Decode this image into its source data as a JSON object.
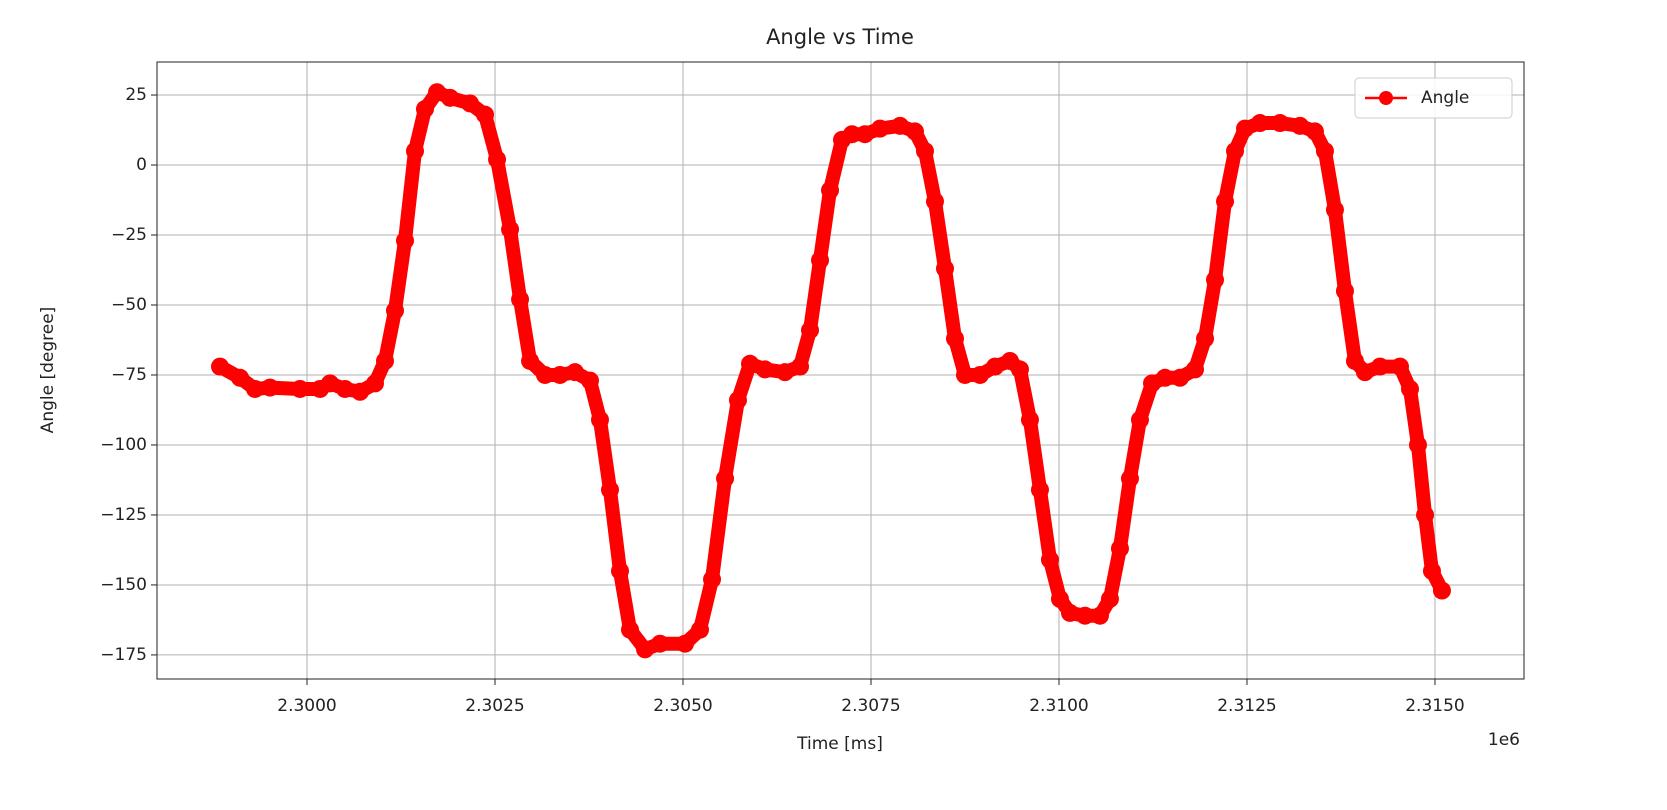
{
  "chart_data": {
    "type": "line",
    "title": "Angle vs Time",
    "xlabel": "Time [ms]",
    "ylabel": "Angle [degree]",
    "x_offset_label": "1e6",
    "x": [
      2298843,
      2299109,
      2299308,
      2299508,
      2299907,
      2300173,
      2300306,
      2300505,
      2300705,
      2300904,
      2301037,
      2301170,
      2301303,
      2301436,
      2301569,
      2301729,
      2301902,
      2302168,
      2302367,
      2302527,
      2302700,
      2302833,
      2302966,
      2303165,
      2303364,
      2303564,
      2303763,
      2303896,
      2304029,
      2304162,
      2304295,
      2304495,
      2304694,
      2305027,
      2305226,
      2305386,
      2305559,
      2305731,
      2305891,
      2306090,
      2306356,
      2306556,
      2306689,
      2306822,
      2306955,
      2307114,
      2307247,
      2307420,
      2307620,
      2307886,
      2308085,
      2308218,
      2308351,
      2308484,
      2308617,
      2308750,
      2308950,
      2309149,
      2309348,
      2309481,
      2309614,
      2309747,
      2309880,
      2310013,
      2310146,
      2310346,
      2310545,
      2310678,
      2310811,
      2310944,
      2311077,
      2311237,
      2311410,
      2311609,
      2311809,
      2311942,
      2312075,
      2312208,
      2312341,
      2312474,
      2312673,
      2312939,
      2313205,
      2313404,
      2313537,
      2313670,
      2313803,
      2313936,
      2314069,
      2314269,
      2314535,
      2314668,
      2314774,
      2314868,
      2314960,
      2315093
    ],
    "series": [
      {
        "name": "Angle",
        "color": "#ff0000",
        "values": [
          -72,
          -76,
          -80,
          -79.5,
          -80,
          -80,
          -78,
          -80,
          -81,
          -78,
          -70,
          -52,
          -27,
          5,
          20,
          26,
          24,
          22,
          18,
          2,
          -23,
          -48,
          -70,
          -75,
          -75,
          -74,
          -77,
          -91,
          -116,
          -145,
          -166,
          -173,
          -171,
          -171,
          -166,
          -148,
          -112,
          -84,
          -71,
          -73,
          -74,
          -72,
          -59,
          -34,
          -9,
          9,
          11,
          11,
          13,
          14,
          12,
          5,
          -13,
          -37,
          -62,
          -75,
          -75,
          -72,
          -70,
          -73,
          -91,
          -116,
          -141,
          -155,
          -160,
          -161,
          -161,
          -155,
          -137,
          -112,
          -91,
          -78,
          -76,
          -76,
          -73,
          -62,
          -41,
          -13,
          5,
          13,
          15,
          15,
          14,
          12,
          5,
          -16,
          -45,
          -70,
          -74,
          -72,
          -72,
          -80,
          -100,
          -125,
          -145,
          -152
        ]
      }
    ],
    "xlim": [
      2298005,
      2316184
    ],
    "ylim": [
      -183.6,
      36.8
    ],
    "xticks": [
      {
        "value": 2300000,
        "label": "2.3000"
      },
      {
        "value": 2302500,
        "label": "2.3025"
      },
      {
        "value": 2305000,
        "label": "2.3050"
      },
      {
        "value": 2307500,
        "label": "2.3075"
      },
      {
        "value": 2310000,
        "label": "2.3100"
      },
      {
        "value": 2312500,
        "label": "2.3125"
      },
      {
        "value": 2315000,
        "label": "2.3150"
      }
    ],
    "yticks": [
      {
        "value": -175,
        "label": "−175"
      },
      {
        "value": -150,
        "label": "−150"
      },
      {
        "value": -125,
        "label": "−125"
      },
      {
        "value": -100,
        "label": "−100"
      },
      {
        "value": -75,
        "label": "−75"
      },
      {
        "value": -50,
        "label": "−50"
      },
      {
        "value": -25,
        "label": "−25"
      },
      0,
      25
    ],
    "grid": true,
    "legend": "upper right"
  }
}
